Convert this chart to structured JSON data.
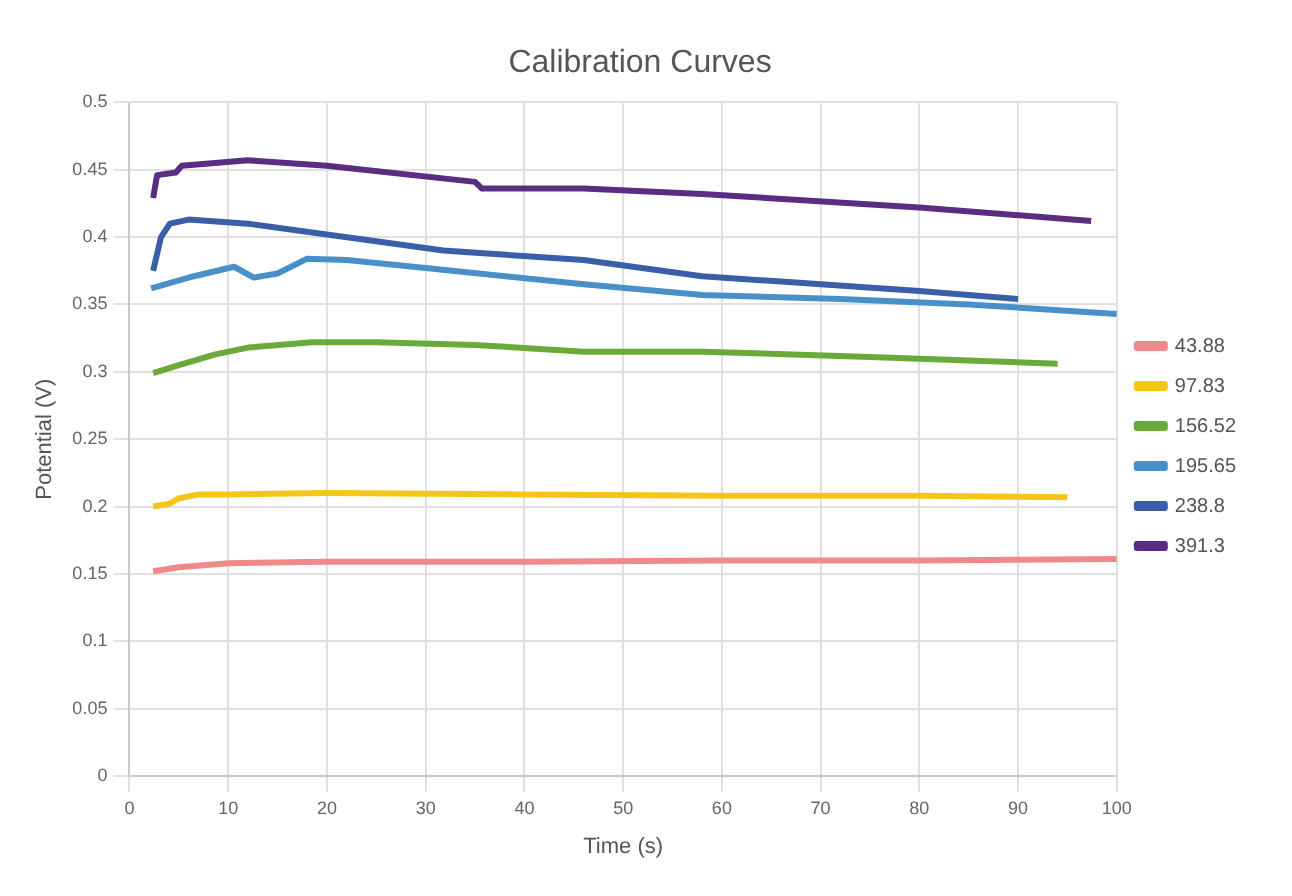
{
  "chart_data": {
    "type": "line",
    "title": "Calibration Curves",
    "xlabel": "Time (s)",
    "ylabel": "Potential (V)",
    "xlim": [
      0,
      100
    ],
    "xticks": [
      0,
      10,
      20,
      30,
      40,
      50,
      60,
      70,
      80,
      90,
      100
    ],
    "ylim": [
      0,
      0.5
    ],
    "yticks": [
      0,
      0.05,
      0.1,
      0.15,
      0.2,
      0.25,
      0.3,
      0.35,
      0.4,
      0.45,
      0.5
    ],
    "grid": true,
    "legend": "right",
    "marker": "none",
    "line_style": "solid",
    "series": [
      {
        "name": "43.88",
        "color": "#f08a8a",
        "x": [
          2.4,
          5,
          10,
          20,
          40,
          60,
          80,
          100
        ],
        "values": [
          0.152,
          0.155,
          0.158,
          0.159,
          0.159,
          0.16,
          0.16,
          0.161
        ]
      },
      {
        "name": "97.83",
        "color": "#f5c518",
        "x": [
          2.4,
          4,
          5,
          7,
          10,
          20,
          40,
          60,
          80,
          95
        ],
        "values": [
          0.2,
          0.202,
          0.206,
          0.209,
          0.209,
          0.21,
          0.209,
          0.208,
          0.208,
          0.207
        ]
      },
      {
        "name": "156.52",
        "color": "#6aaa3a",
        "x": [
          2.4,
          5,
          8.7,
          12,
          18.5,
          25,
          35,
          46,
          58,
          75,
          94
        ],
        "values": [
          0.299,
          0.305,
          0.313,
          0.318,
          0.322,
          0.322,
          0.32,
          0.315,
          0.315,
          0.311,
          0.306
        ]
      },
      {
        "name": "195.65",
        "color": "#4a90c8",
        "x": [
          2.2,
          6,
          10.6,
          12.6,
          15,
          18,
          22,
          30,
          46,
          58,
          72,
          85,
          100
        ],
        "values": [
          0.362,
          0.37,
          0.378,
          0.37,
          0.373,
          0.384,
          0.383,
          0.377,
          0.365,
          0.357,
          0.354,
          0.35,
          0.343
        ]
      },
      {
        "name": "238.8",
        "color": "#3b5ea8",
        "x": [
          2.4,
          3.2,
          4.1,
          6,
          12,
          20,
          31.8,
          46,
          58,
          66,
          80,
          90
        ],
        "values": [
          0.375,
          0.4,
          0.41,
          0.413,
          0.41,
          0.402,
          0.39,
          0.383,
          0.371,
          0.367,
          0.36,
          0.354
        ]
      },
      {
        "name": "391.3",
        "color": "#5b2c83",
        "x": [
          2.4,
          2.8,
          4.7,
          5.3,
          12,
          20,
          35,
          35.7,
          46,
          58,
          80,
          97.4
        ],
        "values": [
          0.429,
          0.446,
          0.448,
          0.453,
          0.457,
          0.453,
          0.441,
          0.436,
          0.436,
          0.432,
          0.422,
          0.412
        ]
      }
    ]
  }
}
